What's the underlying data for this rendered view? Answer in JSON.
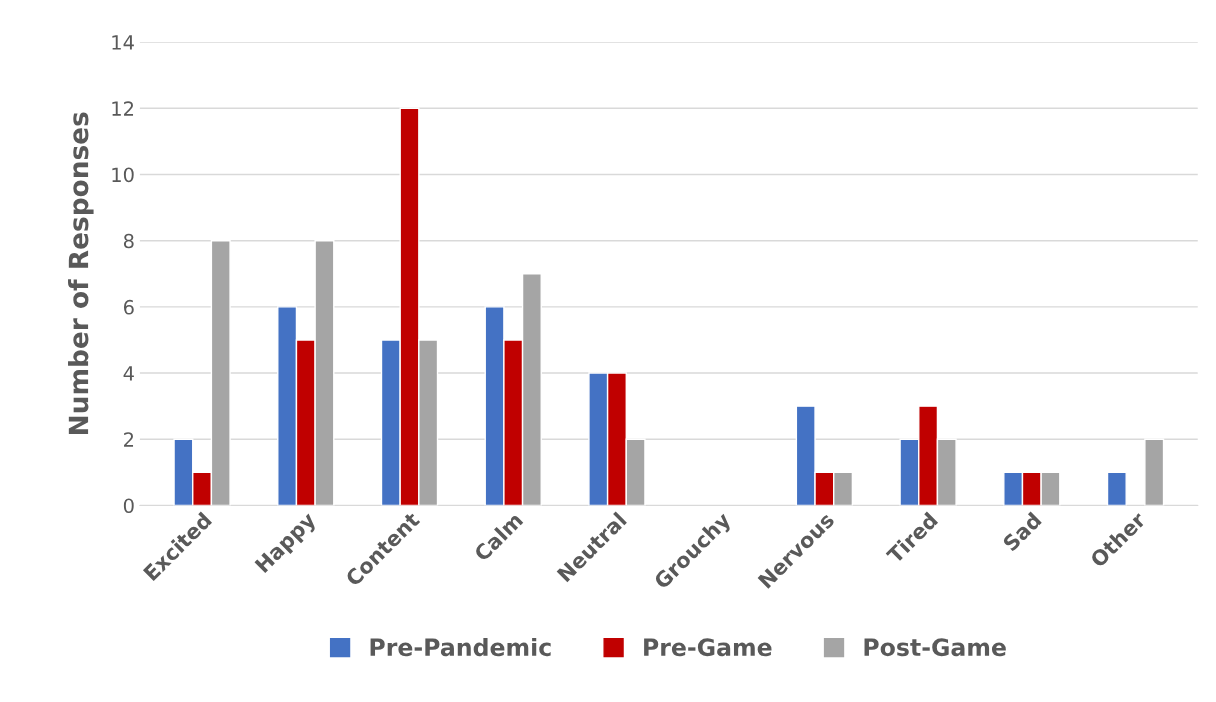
{
  "chart_data": {
    "type": "bar",
    "ylabel": "Number of Responses",
    "categories": [
      "Excited",
      "Happy",
      "Content",
      "Calm",
      "Neutral",
      "Grouchy",
      "Nervous",
      "Tired",
      "Sad",
      "Other"
    ],
    "series": [
      {
        "name": "Pre-Pandemic",
        "color": "#4472c4",
        "values": [
          2,
          6,
          5,
          6,
          4,
          0,
          3,
          2,
          1,
          1
        ]
      },
      {
        "name": "Pre-Game",
        "color": "#c00000",
        "values": [
          1,
          5,
          12,
          5,
          4,
          0,
          1,
          3,
          1,
          0
        ]
      },
      {
        "name": "Post-Game",
        "color": "#a5a5a5",
        "values": [
          8,
          8,
          5,
          7,
          2,
          0,
          1,
          2,
          1,
          2
        ]
      }
    ],
    "ylim": [
      0,
      14
    ],
    "yticks": [
      0,
      2,
      4,
      6,
      8,
      10,
      12,
      14
    ],
    "grid": "y",
    "legend": "bottom"
  }
}
